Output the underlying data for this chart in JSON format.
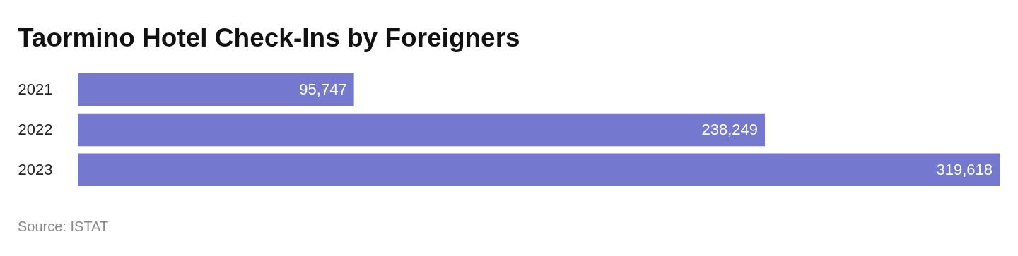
{
  "chart_data": {
    "type": "bar",
    "orientation": "horizontal",
    "title": "Taormino Hotel Check-Ins by Foreigners",
    "categories": [
      "2021",
      "2022",
      "2023"
    ],
    "values": [
      95747,
      238249,
      319618
    ],
    "value_labels": [
      "95,747",
      "238,249",
      "319,618"
    ],
    "color": "#7479cf",
    "annotations": [
      "Source: ISTAT"
    ]
  }
}
